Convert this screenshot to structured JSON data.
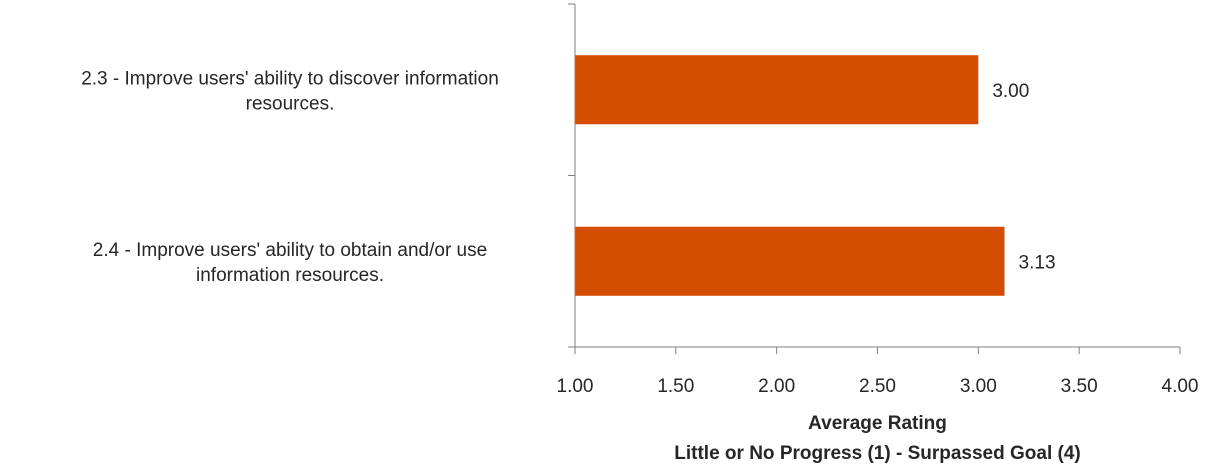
{
  "chart_data": {
    "type": "bar",
    "orientation": "horizontal",
    "categories": [
      [
        "2.3 - Improve users' ability to discover information",
        "resources."
      ],
      [
        "2.4 - Improve users' ability to obtain and/or use",
        "information resources."
      ]
    ],
    "values": [
      3.0,
      3.13
    ],
    "data_labels": [
      "3.00",
      "3.13"
    ],
    "xlim": [
      1.0,
      4.0
    ],
    "ticks": [
      1.0,
      1.5,
      2.0,
      2.5,
      3.0,
      3.5,
      4.0
    ],
    "tick_labels": [
      "1.00",
      "1.50",
      "2.00",
      "2.50",
      "3.00",
      "3.50",
      "4.00"
    ],
    "xlabel": [
      "Average Rating",
      "Little or No Progress (1) - Surpassed Goal (4)"
    ],
    "title": "",
    "legend": "none",
    "grid": false,
    "bar_color": "#d54d00",
    "axis_color": "#7f7f7f",
    "text_color": "#262626"
  }
}
